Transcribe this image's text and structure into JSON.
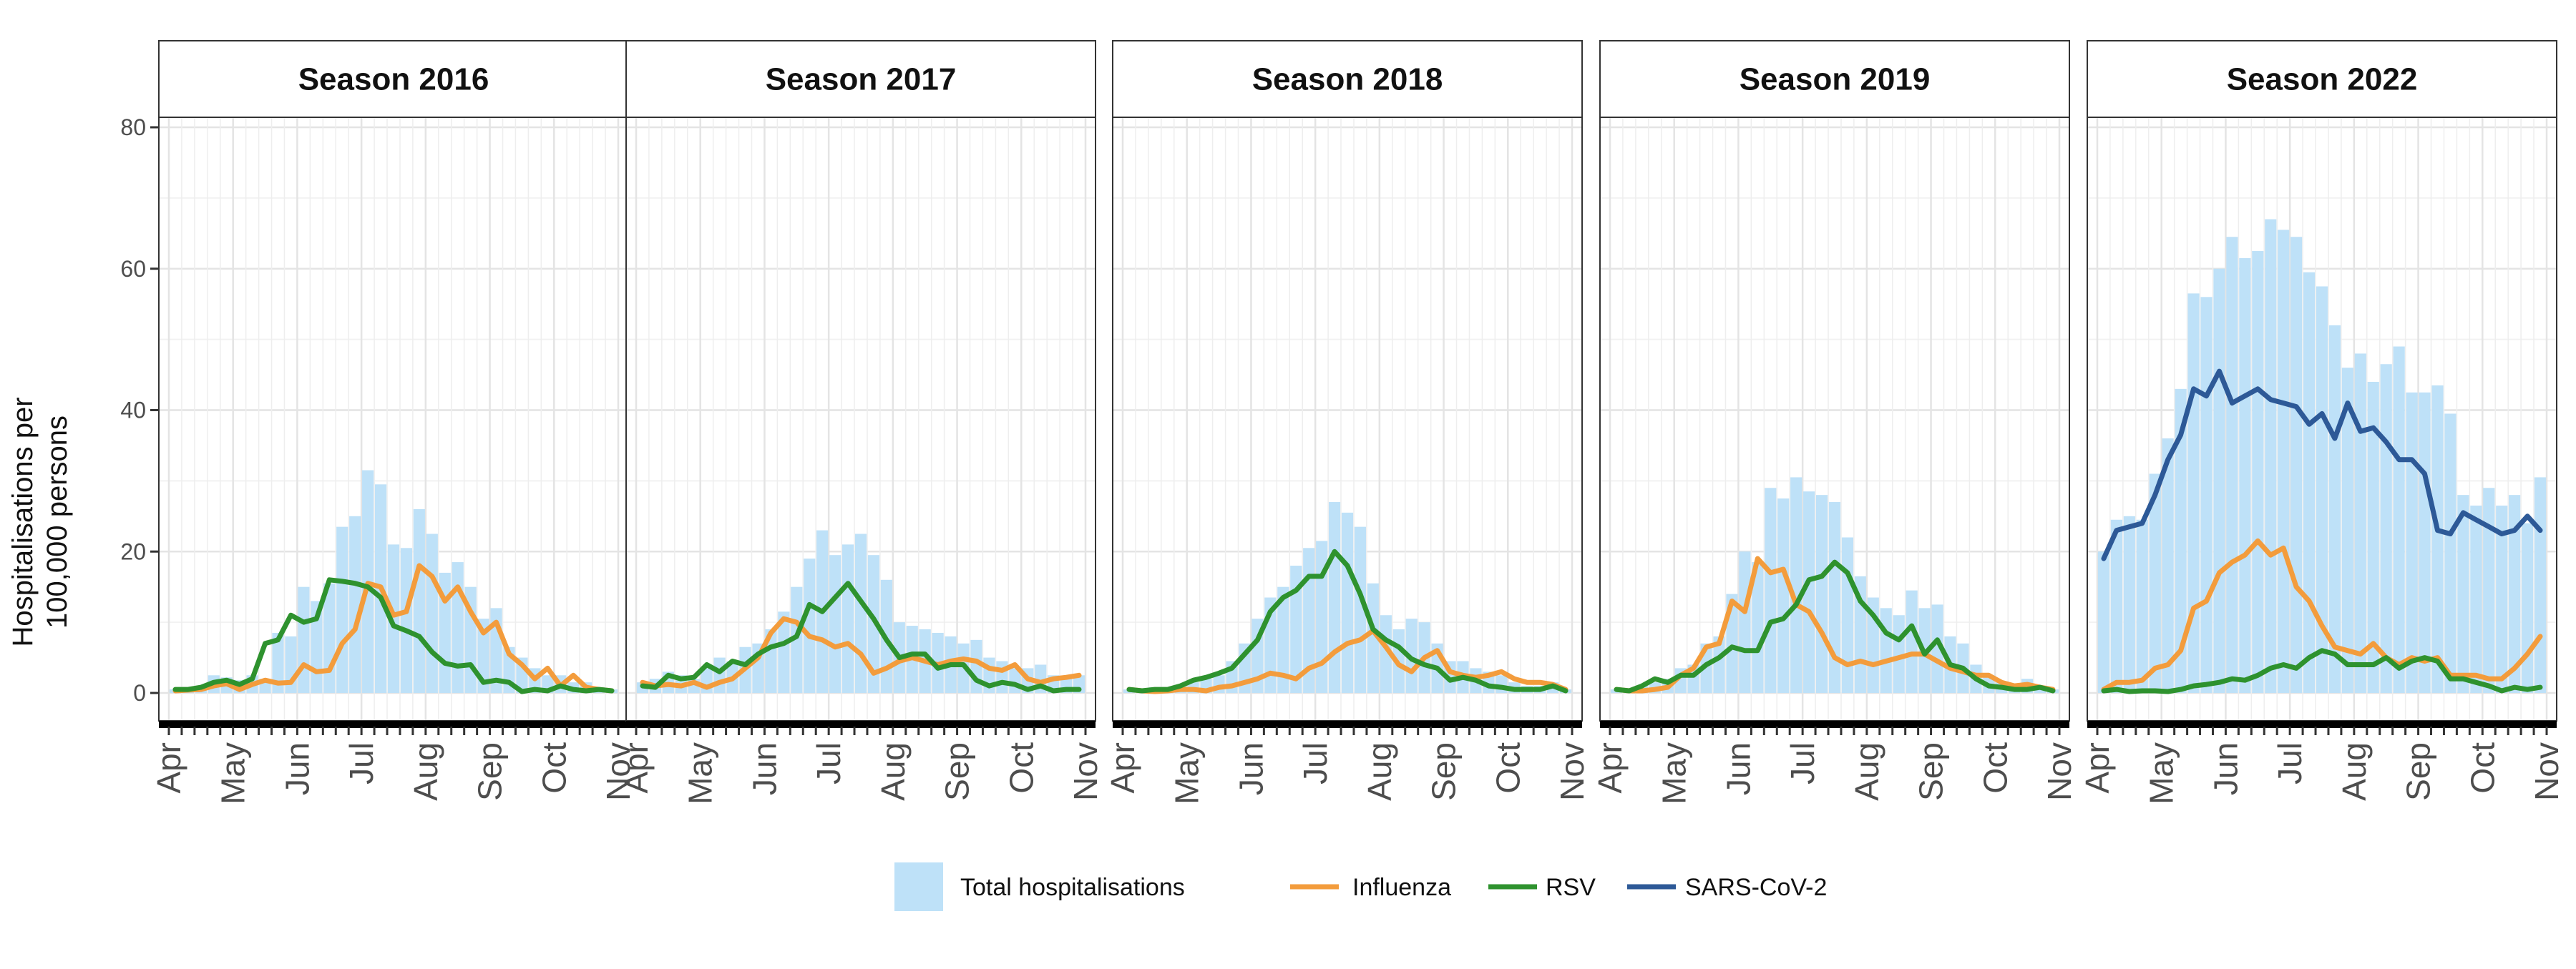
{
  "chart_data": {
    "type": "bar",
    "ylabel": "Hospitalisations per 100,000 persons",
    "ylabel_lines": [
      "Hospitalisations per",
      "100,000 persons"
    ],
    "ylim": [
      0,
      80
    ],
    "yticks": [
      0,
      20,
      40,
      60,
      80
    ],
    "month_ticks": [
      "Apr",
      "May",
      "Jun",
      "Jul",
      "Aug",
      "Sep",
      "Oct",
      "Nov"
    ],
    "x_unit": "weeks since start of April",
    "xlim": [
      0,
      35
    ],
    "grid": true,
    "legend_position": "bottom",
    "legend": [
      {
        "label": "Total hospitalisations",
        "kind": "bar",
        "color": "#BEE1F8"
      },
      {
        "label": "Influenza",
        "kind": "line",
        "color": "#F39C3C"
      },
      {
        "label": "RSV",
        "kind": "line",
        "color": "#2E922E"
      },
      {
        "label": "SARS-CoV-2",
        "kind": "line",
        "color": "#2D5997"
      }
    ],
    "colors": {
      "total": "#BEE1F8",
      "influenza": "#F39C3C",
      "rsv": "#2E922E",
      "sars_cov_2": "#2D5997"
    },
    "panels": [
      {
        "title": "Season 2016",
        "total": [
          0.5,
          0.8,
          1.0,
          2.5,
          2.2,
          1.8,
          2.5,
          2.0,
          8.5,
          8.0,
          15.0,
          13.0,
          15.5,
          23.5,
          25.0,
          31.5,
          29.5,
          21.0,
          20.5,
          26.0,
          22.5,
          17.0,
          18.5,
          15.0,
          10.5,
          12.0,
          6.5,
          5.0,
          3.5,
          2.5,
          2.5,
          1.5,
          1.5,
          0.8,
          0.5
        ],
        "influenza": [
          0.3,
          0.4,
          0.5,
          1.0,
          1.3,
          0.5,
          1.2,
          1.8,
          1.4,
          1.5,
          4.0,
          3.0,
          3.2,
          7.0,
          9.0,
          15.5,
          15.0,
          11.0,
          11.5,
          18.0,
          16.5,
          13.0,
          15.0,
          11.5,
          8.5,
          10.0,
          5.5,
          4.0,
          2.0,
          3.5,
          1.0,
          2.5,
          0.8,
          0.5,
          0.3
        ],
        "rsv": [
          0.5,
          0.5,
          0.8,
          1.5,
          1.8,
          1.2,
          2.0,
          7.0,
          7.5,
          11.0,
          10.0,
          10.5,
          16.0,
          15.8,
          15.5,
          15.0,
          13.5,
          9.5,
          8.8,
          8.0,
          5.8,
          4.2,
          3.8,
          4.0,
          1.5,
          1.8,
          1.5,
          0.2,
          0.5,
          0.3,
          1.0,
          0.5,
          0.3,
          0.5,
          0.3
        ],
        "sars_cov_2": []
      },
      {
        "title": "Season 2017",
        "total": [
          1.5,
          2.0,
          3.0,
          2.5,
          2.0,
          3.5,
          5.0,
          4.5,
          6.5,
          7.0,
          9.0,
          11.5,
          15.0,
          19.0,
          23.0,
          19.5,
          21.0,
          22.5,
          19.5,
          16.0,
          10.0,
          9.5,
          9.0,
          8.5,
          8.0,
          7.0,
          7.5,
          5.0,
          4.5,
          3.5,
          3.5,
          4.0,
          2.5,
          2.0,
          2.5
        ],
        "influenza": [
          1.5,
          1.0,
          1.2,
          1.0,
          1.5,
          0.8,
          1.5,
          2.0,
          3.5,
          5.0,
          8.5,
          10.5,
          10.0,
          8.0,
          7.5,
          6.5,
          7.0,
          5.5,
          2.8,
          3.5,
          4.5,
          5.0,
          4.5,
          4.0,
          4.5,
          4.8,
          4.5,
          3.5,
          3.2,
          4.0,
          2.0,
          1.5,
          2.0,
          2.2,
          2.5
        ],
        "rsv": [
          1.0,
          0.8,
          2.5,
          2.0,
          2.2,
          4.0,
          3.0,
          4.5,
          4.0,
          5.5,
          6.5,
          7.0,
          8.0,
          12.5,
          11.5,
          13.5,
          15.5,
          13.0,
          10.5,
          7.5,
          5.0,
          5.5,
          5.5,
          3.5,
          4.0,
          4.0,
          1.8,
          1.0,
          1.5,
          1.2,
          0.5,
          1.0,
          0.3,
          0.5,
          0.5
        ],
        "sars_cov_2": []
      },
      {
        "title": "Season 2018",
        "total": [
          0.5,
          0.5,
          0.8,
          0.5,
          1.0,
          1.5,
          2.0,
          2.5,
          4.5,
          7.0,
          10.5,
          13.5,
          15.0,
          18.0,
          20.5,
          21.5,
          27.0,
          25.5,
          23.5,
          15.5,
          11.0,
          9.0,
          10.5,
          10.0,
          7.0,
          4.5,
          4.5,
          3.5,
          3.0,
          2.5,
          1.5,
          1.0,
          1.0,
          1.5,
          0.5
        ],
        "influenza": [
          0.5,
          0.3,
          0.2,
          0.3,
          0.5,
          0.5,
          0.3,
          0.8,
          1.0,
          1.5,
          2.0,
          2.8,
          2.5,
          2.0,
          3.5,
          4.2,
          5.8,
          7.0,
          7.5,
          8.8,
          6.5,
          4.0,
          3.0,
          5.0,
          6.0,
          3.0,
          2.5,
          2.2,
          2.5,
          3.0,
          2.0,
          1.5,
          1.5,
          1.2,
          0.5
        ],
        "rsv": [
          0.5,
          0.3,
          0.5,
          0.5,
          1.0,
          1.8,
          2.2,
          2.8,
          3.5,
          5.5,
          7.5,
          11.5,
          13.5,
          14.5,
          16.5,
          16.5,
          20.0,
          18.0,
          14.0,
          9.0,
          7.5,
          6.5,
          4.8,
          4.0,
          3.5,
          1.8,
          2.2,
          1.8,
          1.0,
          0.8,
          0.5,
          0.5,
          0.5,
          1.0,
          0.3
        ],
        "sars_cov_2": []
      },
      {
        "title": "Season 2019",
        "total": [
          0.5,
          0.5,
          1.0,
          1.5,
          2.0,
          3.5,
          4.0,
          7.0,
          8.0,
          14.0,
          20.0,
          18.5,
          29.0,
          27.5,
          30.5,
          28.5,
          28.0,
          27.0,
          22.0,
          16.5,
          13.5,
          12.0,
          11.0,
          14.5,
          12.0,
          12.5,
          8.0,
          7.0,
          4.0,
          2.5,
          1.5,
          1.0,
          2.0,
          1.0,
          0.5
        ],
        "influenza": [
          0.5,
          0.3,
          0.3,
          0.5,
          0.8,
          2.5,
          3.5,
          6.5,
          7.0,
          13.0,
          11.5,
          19.0,
          17.0,
          17.5,
          12.5,
          11.5,
          8.5,
          5.0,
          4.0,
          4.5,
          4.0,
          4.5,
          5.0,
          5.5,
          5.5,
          4.5,
          3.5,
          3.0,
          2.5,
          2.5,
          1.5,
          1.0,
          1.2,
          0.8,
          0.5
        ],
        "rsv": [
          0.5,
          0.3,
          1.0,
          2.0,
          1.5,
          2.5,
          2.5,
          4.0,
          5.0,
          6.5,
          6.0,
          6.0,
          10.0,
          10.5,
          12.5,
          16.0,
          16.5,
          18.5,
          17.0,
          13.0,
          11.0,
          8.5,
          7.5,
          9.5,
          5.5,
          7.5,
          4.0,
          3.5,
          2.0,
          1.0,
          0.8,
          0.5,
          0.5,
          0.8,
          0.3
        ],
        "sars_cov_2": []
      },
      {
        "title": "Season 2022",
        "total": [
          20.0,
          24.5,
          25.0,
          24.5,
          31.0,
          36.0,
          43.0,
          56.5,
          56.0,
          60.0,
          64.5,
          61.5,
          62.5,
          67.0,
          65.5,
          64.5,
          59.5,
          57.5,
          52.0,
          46.0,
          48.0,
          44.0,
          46.5,
          49.0,
          42.5,
          42.5,
          43.5,
          39.5,
          28.0,
          26.5,
          29.0,
          26.5,
          28.0,
          24.0,
          30.5
        ],
        "influenza": [
          0.5,
          1.5,
          1.5,
          1.8,
          3.5,
          4.0,
          6.0,
          12.0,
          13.0,
          17.0,
          18.5,
          19.5,
          21.5,
          19.5,
          20.5,
          15.0,
          13.0,
          9.5,
          6.5,
          6.0,
          5.5,
          7.0,
          5.0,
          4.0,
          5.0,
          4.5,
          5.0,
          2.5,
          2.5,
          2.5,
          2.0,
          2.0,
          3.5,
          5.5,
          8.0
        ],
        "rsv": [
          0.3,
          0.5,
          0.2,
          0.3,
          0.3,
          0.2,
          0.5,
          1.0,
          1.2,
          1.5,
          2.0,
          1.8,
          2.5,
          3.5,
          4.0,
          3.5,
          5.0,
          6.0,
          5.5,
          4.0,
          4.0,
          4.0,
          5.0,
          3.5,
          4.5,
          5.0,
          4.5,
          2.0,
          2.0,
          1.5,
          1.0,
          0.3,
          0.8,
          0.5,
          0.8
        ],
        "sars_cov_2": [
          19.0,
          23.0,
          23.5,
          24.0,
          28.0,
          33.0,
          36.5,
          43.0,
          42.0,
          45.5,
          41.0,
          42.0,
          43.0,
          41.5,
          41.0,
          40.5,
          38.0,
          39.5,
          36.0,
          41.0,
          37.0,
          37.5,
          35.5,
          33.0,
          33.0,
          31.0,
          23.0,
          22.5,
          25.5,
          24.5,
          23.5,
          22.5,
          23.0,
          25.0,
          23.0
        ]
      }
    ]
  }
}
